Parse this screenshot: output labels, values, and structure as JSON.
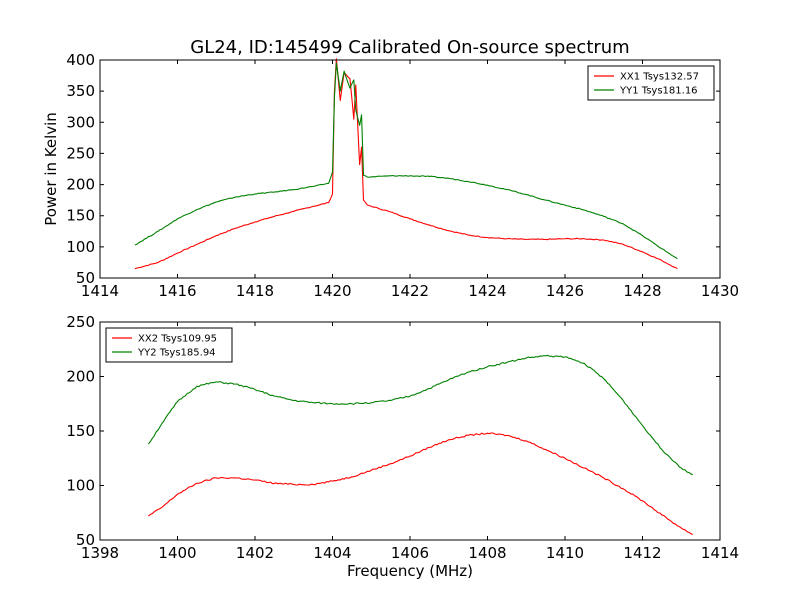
{
  "figure_title": "GL24, ID:145499 Calibrated On-source spectrum",
  "chart_data": [
    {
      "type": "line",
      "ylabel": "Power in Kelvin",
      "xlabel": "",
      "xlim": [
        1414,
        1430
      ],
      "ylim": [
        50,
        400
      ],
      "xticks": [
        "1414",
        "1416",
        "1418",
        "1420",
        "1422",
        "1424",
        "1426",
        "1428",
        "1430"
      ],
      "yticks": [
        "50",
        "100",
        "150",
        "200",
        "250",
        "300",
        "350",
        "400"
      ],
      "legend_position": "top-right",
      "series": [
        {
          "name": "XX1 Tsys132.57",
          "color": "#ff0000",
          "points": [
            [
              1414.9,
              65
            ],
            [
              1415.5,
              75
            ],
            [
              1416.0,
              90
            ],
            [
              1416.5,
              104
            ],
            [
              1417.0,
              118
            ],
            [
              1417.5,
              130
            ],
            [
              1418.0,
              140
            ],
            [
              1418.5,
              149
            ],
            [
              1419.0,
              157
            ],
            [
              1419.5,
              165
            ],
            [
              1419.9,
              171
            ],
            [
              1420.0,
              185
            ],
            [
              1420.05,
              350
            ],
            [
              1420.1,
              402
            ],
            [
              1420.2,
              335
            ],
            [
              1420.3,
              380
            ],
            [
              1420.45,
              370
            ],
            [
              1420.55,
              305
            ],
            [
              1420.6,
              360
            ],
            [
              1420.7,
              232
            ],
            [
              1420.75,
              260
            ],
            [
              1420.8,
              175
            ],
            [
              1420.9,
              167
            ],
            [
              1421.5,
              156
            ],
            [
              1422.0,
              145
            ],
            [
              1422.5,
              135
            ],
            [
              1423.0,
              126
            ],
            [
              1423.5,
              119
            ],
            [
              1424.0,
              115
            ],
            [
              1424.5,
              113
            ],
            [
              1425.0,
              112
            ],
            [
              1425.5,
              112
            ],
            [
              1426.0,
              113
            ],
            [
              1426.5,
              113
            ],
            [
              1427.0,
              111
            ],
            [
              1427.5,
              104
            ],
            [
              1428.0,
              92
            ],
            [
              1428.5,
              78
            ],
            [
              1428.9,
              65
            ]
          ]
        },
        {
          "name": "YY1 Tsys181.16",
          "color": "#008000",
          "points": [
            [
              1414.9,
              103
            ],
            [
              1415.5,
              125
            ],
            [
              1416.0,
              145
            ],
            [
              1416.5,
              160
            ],
            [
              1417.0,
              172
            ],
            [
              1417.5,
              180
            ],
            [
              1418.0,
              185
            ],
            [
              1418.5,
              188
            ],
            [
              1419.0,
              192
            ],
            [
              1419.5,
              197
            ],
            [
              1419.9,
              202
            ],
            [
              1420.0,
              220
            ],
            [
              1420.05,
              340
            ],
            [
              1420.1,
              395
            ],
            [
              1420.2,
              350
            ],
            [
              1420.3,
              382
            ],
            [
              1420.45,
              355
            ],
            [
              1420.55,
              368
            ],
            [
              1420.6,
              320
            ],
            [
              1420.7,
              295
            ],
            [
              1420.75,
              312
            ],
            [
              1420.8,
              215
            ],
            [
              1420.9,
              212
            ],
            [
              1421.5,
              214
            ],
            [
              1422.0,
              214
            ],
            [
              1422.5,
              213
            ],
            [
              1423.0,
              210
            ],
            [
              1423.5,
              205
            ],
            [
              1424.0,
              199
            ],
            [
              1424.5,
              192
            ],
            [
              1425.0,
              184
            ],
            [
              1425.5,
              175
            ],
            [
              1426.0,
              167
            ],
            [
              1426.5,
              159
            ],
            [
              1427.0,
              149
            ],
            [
              1427.5,
              137
            ],
            [
              1428.0,
              118
            ],
            [
              1428.5,
              97
            ],
            [
              1428.9,
              81
            ]
          ]
        }
      ]
    },
    {
      "type": "line",
      "ylabel": "",
      "xlabel": "Frequency (MHz)",
      "xlim": [
        1398,
        1414
      ],
      "ylim": [
        50,
        250
      ],
      "xticks": [
        "1398",
        "1400",
        "1402",
        "1404",
        "1406",
        "1408",
        "1410",
        "1412",
        "1414"
      ],
      "yticks": [
        "50",
        "100",
        "150",
        "200",
        "250"
      ],
      "legend_position": "top-left",
      "series": [
        {
          "name": "XX2 Tsys109.95",
          "color": "#ff0000",
          "points": [
            [
              1399.25,
              72
            ],
            [
              1399.6,
              80
            ],
            [
              1400.0,
              92
            ],
            [
              1400.5,
              102
            ],
            [
              1401.0,
              107
            ],
            [
              1401.5,
              107
            ],
            [
              1402.0,
              105
            ],
            [
              1402.5,
              102
            ],
            [
              1403.0,
              101
            ],
            [
              1403.5,
              101
            ],
            [
              1404.0,
              104
            ],
            [
              1404.5,
              108
            ],
            [
              1405.0,
              114
            ],
            [
              1405.5,
              120
            ],
            [
              1406.0,
              127
            ],
            [
              1406.5,
              135
            ],
            [
              1407.0,
              142
            ],
            [
              1407.5,
              146
            ],
            [
              1408.0,
              148
            ],
            [
              1408.5,
              146
            ],
            [
              1409.0,
              141
            ],
            [
              1409.5,
              133
            ],
            [
              1410.0,
              125
            ],
            [
              1410.5,
              116
            ],
            [
              1411.0,
              107
            ],
            [
              1411.5,
              97
            ],
            [
              1412.0,
              86
            ],
            [
              1412.5,
              73
            ],
            [
              1413.0,
              61
            ],
            [
              1413.3,
              55
            ]
          ]
        },
        {
          "name": "YY2 Tsys185.94",
          "color": "#008000",
          "points": [
            [
              1399.25,
              138
            ],
            [
              1399.6,
              157
            ],
            [
              1400.0,
              177
            ],
            [
              1400.5,
              191
            ],
            [
              1401.0,
              195
            ],
            [
              1401.5,
              193
            ],
            [
              1402.0,
              188
            ],
            [
              1402.5,
              182
            ],
            [
              1403.0,
              178
            ],
            [
              1403.5,
              176
            ],
            [
              1404.0,
              175
            ],
            [
              1404.5,
              175
            ],
            [
              1405.0,
              176
            ],
            [
              1405.5,
              178
            ],
            [
              1406.0,
              182
            ],
            [
              1406.5,
              189
            ],
            [
              1407.0,
              197
            ],
            [
              1407.5,
              204
            ],
            [
              1408.0,
              209
            ],
            [
              1408.5,
              213
            ],
            [
              1409.0,
              217
            ],
            [
              1409.5,
              219
            ],
            [
              1410.0,
              218
            ],
            [
              1410.5,
              212
            ],
            [
              1411.0,
              198
            ],
            [
              1411.5,
              178
            ],
            [
              1412.0,
              155
            ],
            [
              1412.5,
              133
            ],
            [
              1413.0,
              116
            ],
            [
              1413.3,
              110
            ]
          ]
        }
      ]
    }
  ]
}
